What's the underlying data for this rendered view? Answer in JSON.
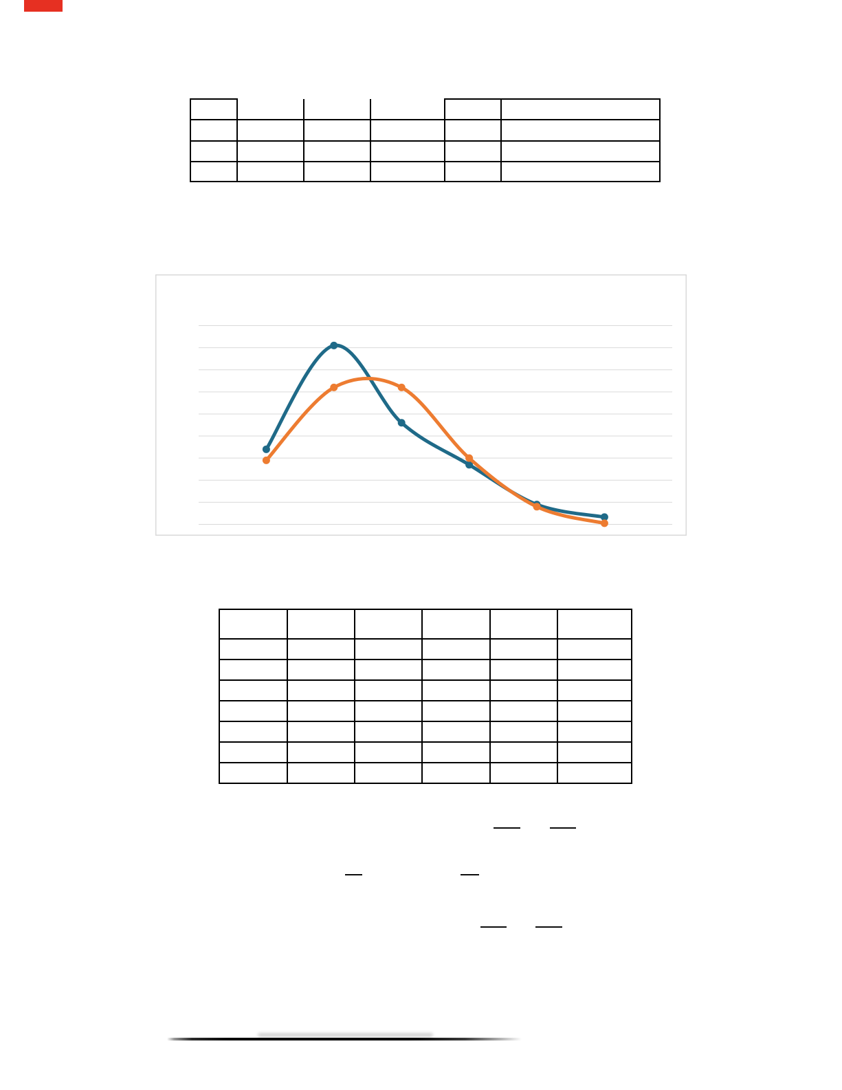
{
  "page": {
    "background": "#ffffff"
  },
  "red_mark": {
    "color": "#e63022"
  },
  "top_table": {
    "rows": 4,
    "cols": 6,
    "cells": [
      [
        "",
        "",
        "",
        "",
        "",
        ""
      ],
      [
        "",
        "",
        "",
        "",
        "",
        ""
      ],
      [
        "",
        "",
        "",
        "",
        "",
        ""
      ],
      [
        "",
        "",
        "",
        "",
        "",
        ""
      ]
    ],
    "border_color": "#000000",
    "header_top_border_missing_over_columns": [
      2,
      3,
      4
    ]
  },
  "bottom_table": {
    "rows": 8,
    "cols": 6,
    "cells": [
      [
        "",
        "",
        "",
        "",
        "",
        ""
      ],
      [
        "",
        "",
        "",
        "",
        "",
        ""
      ],
      [
        "",
        "",
        "",
        "",
        "",
        ""
      ],
      [
        "",
        "",
        "",
        "",
        "",
        ""
      ],
      [
        "",
        "",
        "",
        "",
        "",
        ""
      ],
      [
        "",
        "",
        "",
        "",
        "",
        ""
      ],
      [
        "",
        "",
        "",
        "",
        "",
        ""
      ],
      [
        "",
        "",
        "",
        "",
        "",
        ""
      ]
    ],
    "border_color": "#000000"
  },
  "chart_data": {
    "type": "line",
    "smooth": true,
    "title": "",
    "xlabel": "",
    "ylabel": "",
    "x": [
      1,
      2,
      3,
      4,
      5,
      6
    ],
    "series": [
      {
        "name": "series-blue",
        "color": "#1f6a88",
        "values": [
          3.4,
          8.1,
          4.6,
          2.7,
          0.9,
          0.33
        ]
      },
      {
        "name": "series-orange",
        "color": "#ed7c31",
        "values": [
          2.9,
          6.2,
          6.2,
          3.0,
          0.8,
          0.05
        ]
      }
    ],
    "xlim": [
      0,
      7
    ],
    "ylim": [
      0,
      11.3
    ],
    "units": "unlabeled gridline units (no tick labels visible)",
    "gridlines": {
      "visible": true,
      "values": [
        0,
        1,
        2,
        3,
        4,
        5,
        6,
        7,
        8,
        9
      ],
      "color": "#d9d9d9"
    },
    "plot_border_color": "#d9d9d9",
    "legend": "none",
    "marker_radius": 5.5,
    "line_width": 5
  },
  "fraction_bars": {
    "count": 6,
    "color": "#0d0d0d"
  },
  "bottom_rule": {
    "style": "thick dark line fading at both ends"
  }
}
